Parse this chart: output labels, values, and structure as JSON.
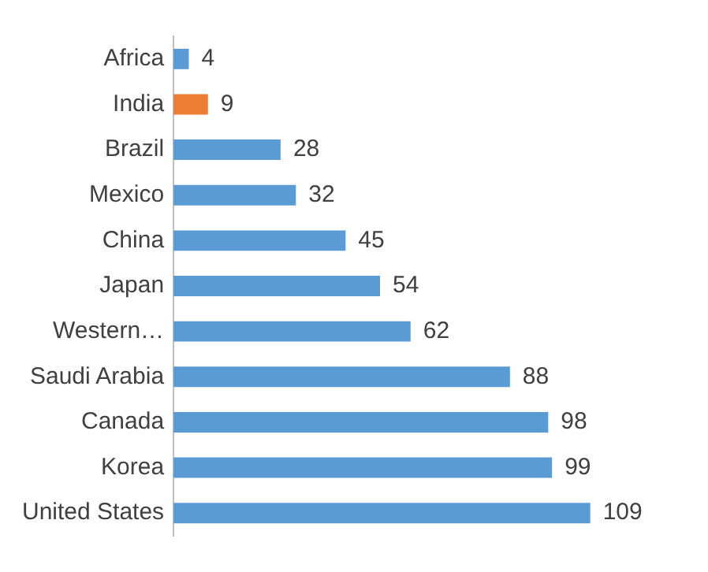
{
  "chart_data": {
    "type": "bar",
    "orientation": "horizontal",
    "categories": [
      "Africa",
      "India",
      "Brazil",
      "Mexico",
      "China",
      "Japan",
      "Western…",
      "Saudi Arabia",
      "Canada",
      "Korea",
      "United States"
    ],
    "values": [
      4,
      9,
      28,
      32,
      45,
      54,
      62,
      88,
      98,
      99,
      109
    ],
    "colors": [
      "#5b9bd5",
      "#ed7d31",
      "#5b9bd5",
      "#5b9bd5",
      "#5b9bd5",
      "#5b9bd5",
      "#5b9bd5",
      "#5b9bd5",
      "#5b9bd5",
      "#5b9bd5",
      "#5b9bd5"
    ],
    "data_labels": true,
    "legend": false
  }
}
